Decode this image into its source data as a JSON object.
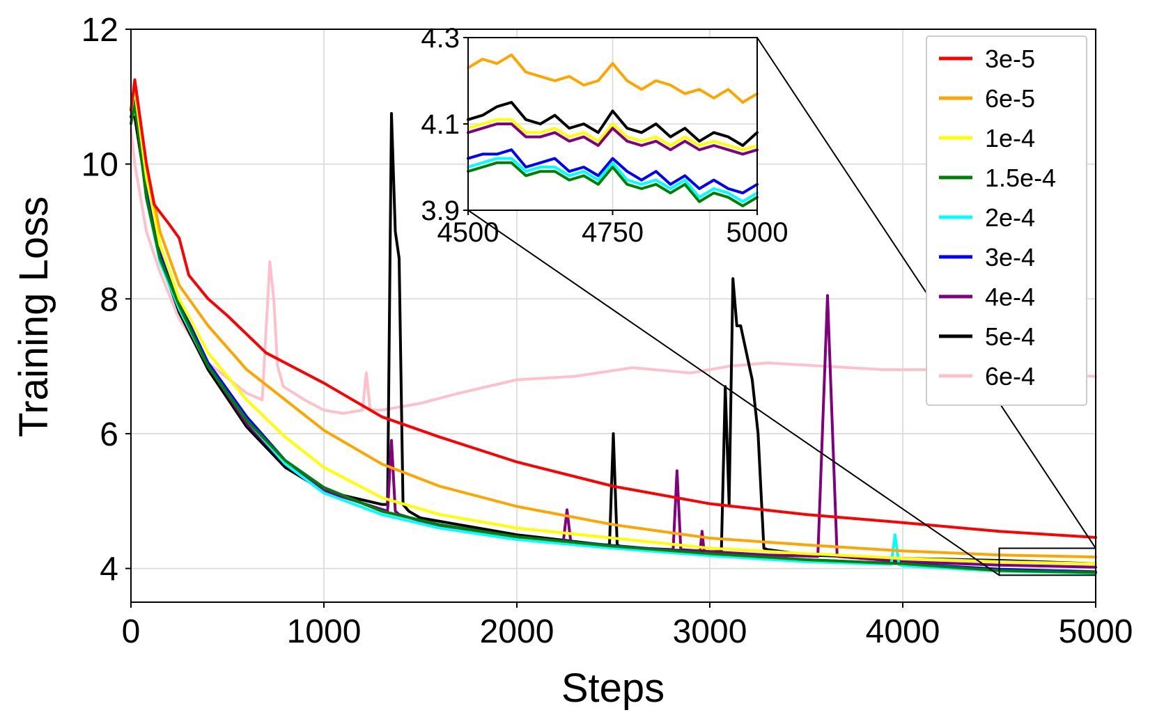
{
  "chart_data": {
    "type": "line",
    "xlabel": "Steps",
    "ylabel": "Training Loss",
    "xlim": [
      0,
      5000
    ],
    "ylim": [
      3.5,
      12
    ],
    "xticks": [
      0,
      1000,
      2000,
      3000,
      4000,
      5000
    ],
    "yticks": [
      4,
      6,
      8,
      10,
      12
    ],
    "grid": true,
    "legend": {
      "placement": "top-right"
    },
    "series": [
      {
        "name": "3e-5",
        "color": "#ff0000",
        "x": [
          0,
          20,
          80,
          120,
          200,
          250,
          300,
          400,
          500,
          700,
          1000,
          1300,
          1600,
          2000,
          2500,
          3000,
          3500,
          4000,
          4500,
          5000
        ],
        "y": [
          10.8,
          11.25,
          10.0,
          9.4,
          9.1,
          8.9,
          8.35,
          8.0,
          7.75,
          7.2,
          6.75,
          6.25,
          5.95,
          5.58,
          5.22,
          4.96,
          4.8,
          4.68,
          4.55,
          4.46
        ]
      },
      {
        "name": "6e-5",
        "color": "#ffa500",
        "x": [
          0,
          20,
          80,
          150,
          250,
          400,
          600,
          800,
          1000,
          1300,
          1600,
          2000,
          2500,
          3000,
          3500,
          4000,
          4500,
          5000
        ],
        "y": [
          10.8,
          11.2,
          10.0,
          9.0,
          8.2,
          7.6,
          6.95,
          6.5,
          6.05,
          5.55,
          5.22,
          4.92,
          4.65,
          4.45,
          4.35,
          4.26,
          4.2,
          4.17
        ]
      },
      {
        "name": "1e-4",
        "color": "#ffff00",
        "x": [
          0,
          20,
          80,
          150,
          250,
          400,
          600,
          800,
          1000,
          1300,
          1600,
          2000,
          2500,
          3000,
          3500,
          4000,
          4500,
          5000
        ],
        "y": [
          10.8,
          11.1,
          9.8,
          8.8,
          8.0,
          7.2,
          6.5,
          5.95,
          5.5,
          5.05,
          4.8,
          4.6,
          4.45,
          4.3,
          4.22,
          4.15,
          4.1,
          4.07
        ]
      },
      {
        "name": "1.5e-4",
        "color": "#008000",
        "x": [
          0,
          20,
          80,
          150,
          250,
          400,
          600,
          800,
          1000,
          1300,
          1600,
          2000,
          2500,
          3000,
          3500,
          4000,
          4500,
          5000
        ],
        "y": [
          10.6,
          10.9,
          9.5,
          8.6,
          7.9,
          7.0,
          6.2,
          5.6,
          5.2,
          4.85,
          4.65,
          4.47,
          4.33,
          4.22,
          4.13,
          4.07,
          3.97,
          3.94
        ]
      },
      {
        "name": "2e-4",
        "color": "#00ffff",
        "x": [
          0,
          20,
          80,
          150,
          250,
          400,
          600,
          800,
          1000,
          1300,
          1600,
          2000,
          2500,
          3000,
          3500,
          3940,
          3960,
          3980,
          4000,
          4500,
          5000
        ],
        "y": [
          10.6,
          10.9,
          9.5,
          8.55,
          7.85,
          7.0,
          6.2,
          5.55,
          5.12,
          4.8,
          4.6,
          4.43,
          4.3,
          4.19,
          4.1,
          4.06,
          4.5,
          4.06,
          4.04,
          3.96,
          3.93
        ]
      },
      {
        "name": "3e-4",
        "color": "#0000ff",
        "x": [
          0,
          20,
          80,
          150,
          250,
          400,
          600,
          800,
          1000,
          1300,
          1600,
          2000,
          2500,
          3000,
          3500,
          4000,
          4500,
          5000
        ],
        "y": [
          10.8,
          11.05,
          9.6,
          8.7,
          7.95,
          7.05,
          6.25,
          5.6,
          5.2,
          4.85,
          4.65,
          4.47,
          4.34,
          4.22,
          4.13,
          4.07,
          3.99,
          3.95
        ]
      },
      {
        "name": "4e-4",
        "color": "#800080",
        "x": [
          0,
          20,
          80,
          150,
          250,
          400,
          600,
          800,
          1000,
          1330,
          1350,
          1370,
          1390,
          1600,
          2000,
          2240,
          2260,
          2280,
          2500,
          2810,
          2830,
          2850,
          2950,
          2960,
          2970,
          3000,
          3300,
          3560,
          3590,
          3610,
          3630,
          3660,
          4000,
          4500,
          5000
        ],
        "y": [
          10.7,
          10.9,
          9.5,
          8.6,
          7.85,
          7.0,
          6.15,
          5.55,
          5.15,
          4.85,
          5.9,
          4.85,
          4.8,
          4.62,
          4.45,
          4.38,
          4.87,
          4.38,
          4.32,
          4.28,
          5.45,
          4.28,
          4.26,
          4.55,
          4.26,
          4.25,
          4.2,
          4.18,
          6.5,
          8.05,
          6.5,
          4.18,
          4.1,
          4.05,
          4.02
        ]
      },
      {
        "name": "5e-4",
        "color": "#000000",
        "x": [
          0,
          20,
          80,
          150,
          250,
          400,
          600,
          800,
          1000,
          1300,
          1330,
          1350,
          1370,
          1390,
          1410,
          1440,
          1500,
          2000,
          2450,
          2480,
          2500,
          2520,
          2560,
          3000,
          3060,
          3080,
          3100,
          3120,
          3140,
          3160,
          3190,
          3220,
          3250,
          3280,
          3300,
          3500,
          4000,
          4500,
          5000
        ],
        "y": [
          10.7,
          10.7,
          9.6,
          8.6,
          7.8,
          6.95,
          6.1,
          5.5,
          5.15,
          4.95,
          4.95,
          10.75,
          9.0,
          8.6,
          4.95,
          4.85,
          4.75,
          4.5,
          4.35,
          4.35,
          6.0,
          4.35,
          4.3,
          4.25,
          4.25,
          6.7,
          4.95,
          8.3,
          7.6,
          7.6,
          7.2,
          6.8,
          6.0,
          4.3,
          4.28,
          4.2,
          4.15,
          4.12,
          4.07
        ]
      },
      {
        "name": "6e-4",
        "color": "#ffc0cb",
        "x": [
          0,
          20,
          80,
          150,
          250,
          400,
          600,
          680,
          720,
          740,
          760,
          790,
          900,
          1000,
          1100,
          1200,
          1220,
          1240,
          1300,
          1500,
          1700,
          2000,
          2300,
          2600,
          2900,
          3100,
          3300,
          3600,
          3900,
          4200,
          4500,
          4800,
          5000
        ],
        "y": [
          10.5,
          10.0,
          9.0,
          8.4,
          7.7,
          7.05,
          6.6,
          6.5,
          8.55,
          8.0,
          7.0,
          6.7,
          6.5,
          6.35,
          6.3,
          6.35,
          6.9,
          6.35,
          6.35,
          6.45,
          6.6,
          6.8,
          6.85,
          6.98,
          6.9,
          7.0,
          7.05,
          7.0,
          6.95,
          6.95,
          6.9,
          6.87,
          6.85
        ]
      }
    ],
    "inset": {
      "xlim": [
        4500,
        5000
      ],
      "ylim": [
        3.9,
        4.3
      ],
      "xticks": [
        4500,
        4750,
        5000
      ],
      "yticks": [
        3.9,
        4.1,
        4.3
      ],
      "series": [
        {
          "name": "6e-5",
          "x": [
            4500,
            4525,
            4550,
            4575,
            4600,
            4625,
            4650,
            4675,
            4700,
            4725,
            4750,
            4775,
            4800,
            4825,
            4850,
            4875,
            4900,
            4925,
            4950,
            4975,
            5000
          ],
          "y": [
            4.23,
            4.25,
            4.24,
            4.26,
            4.22,
            4.21,
            4.2,
            4.21,
            4.19,
            4.2,
            4.24,
            4.2,
            4.18,
            4.2,
            4.19,
            4.17,
            4.18,
            4.16,
            4.18,
            4.15,
            4.17
          ]
        },
        {
          "name": "5e-4",
          "x": [
            4500,
            4525,
            4550,
            4575,
            4600,
            4625,
            4650,
            4675,
            4700,
            4725,
            4750,
            4775,
            4800,
            4825,
            4850,
            4875,
            4900,
            4925,
            4950,
            4975,
            5000
          ],
          "y": [
            4.11,
            4.12,
            4.14,
            4.15,
            4.11,
            4.1,
            4.12,
            4.09,
            4.1,
            4.08,
            4.13,
            4.09,
            4.08,
            4.1,
            4.07,
            4.09,
            4.06,
            4.08,
            4.07,
            4.05,
            4.08
          ]
        },
        {
          "name": "1e-4",
          "x": [
            4500,
            4525,
            4550,
            4575,
            4600,
            4625,
            4650,
            4675,
            4700,
            4725,
            4750,
            4775,
            4800,
            4825,
            4850,
            4875,
            4900,
            4925,
            4950,
            4975,
            5000
          ],
          "y": [
            4.09,
            4.1,
            4.11,
            4.11,
            4.08,
            4.08,
            4.09,
            4.07,
            4.08,
            4.06,
            4.1,
            4.07,
            4.06,
            4.07,
            4.05,
            4.07,
            4.05,
            4.06,
            4.05,
            4.04,
            4.05
          ]
        },
        {
          "name": "4e-4",
          "x": [
            4500,
            4525,
            4550,
            4575,
            4600,
            4625,
            4650,
            4675,
            4700,
            4725,
            4750,
            4775,
            4800,
            4825,
            4850,
            4875,
            4900,
            4925,
            4950,
            4975,
            5000
          ],
          "y": [
            4.08,
            4.09,
            4.1,
            4.1,
            4.07,
            4.07,
            4.08,
            4.06,
            4.07,
            4.05,
            4.09,
            4.06,
            4.05,
            4.06,
            4.04,
            4.06,
            4.04,
            4.05,
            4.04,
            4.03,
            4.04
          ]
        },
        {
          "name": "3e-4",
          "x": [
            4500,
            4525,
            4550,
            4575,
            4600,
            4625,
            4650,
            4675,
            4700,
            4725,
            4750,
            4775,
            4800,
            4825,
            4850,
            4875,
            4900,
            4925,
            4950,
            4975,
            5000
          ],
          "y": [
            4.02,
            4.03,
            4.03,
            4.04,
            4.0,
            4.01,
            4.02,
            3.99,
            4.0,
            3.98,
            4.02,
            3.99,
            3.97,
            3.99,
            3.96,
            3.98,
            3.95,
            3.97,
            3.95,
            3.94,
            3.96
          ]
        },
        {
          "name": "2e-4",
          "x": [
            4500,
            4525,
            4550,
            4575,
            4600,
            4625,
            4650,
            4675,
            4700,
            4725,
            4750,
            4775,
            4800,
            4825,
            4850,
            4875,
            4900,
            4925,
            4950,
            4975,
            5000
          ],
          "y": [
            4.0,
            4.01,
            4.02,
            4.02,
            3.99,
            4.0,
            4.0,
            3.98,
            3.99,
            3.97,
            4.01,
            3.97,
            3.96,
            3.97,
            3.95,
            3.97,
            3.93,
            3.95,
            3.94,
            3.92,
            3.94
          ]
        },
        {
          "name": "1.5e-4",
          "x": [
            4500,
            4525,
            4550,
            4575,
            4600,
            4625,
            4650,
            4675,
            4700,
            4725,
            4750,
            4775,
            4800,
            4825,
            4850,
            4875,
            4900,
            4925,
            4950,
            4975,
            5000
          ],
          "y": [
            3.99,
            4.0,
            4.01,
            4.01,
            3.98,
            3.99,
            3.99,
            3.97,
            3.98,
            3.96,
            4.0,
            3.96,
            3.95,
            3.96,
            3.94,
            3.96,
            3.92,
            3.94,
            3.93,
            3.91,
            3.93
          ]
        }
      ]
    }
  }
}
